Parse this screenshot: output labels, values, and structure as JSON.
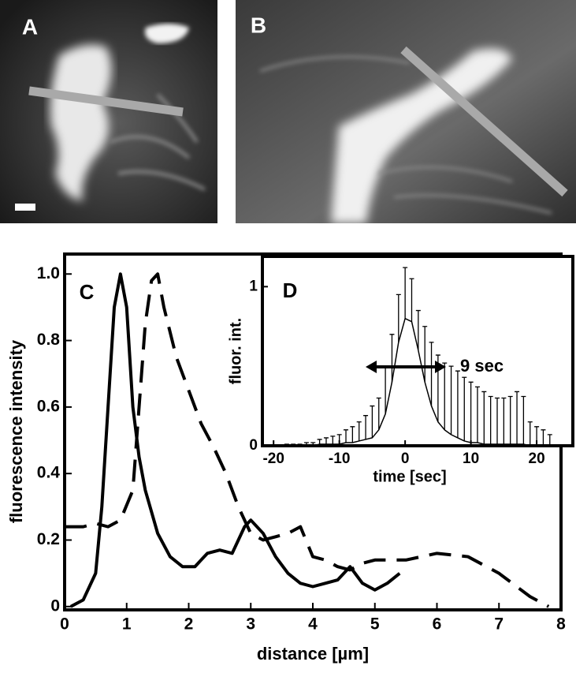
{
  "panels": [
    {
      "label": "A"
    },
    {
      "label": "B"
    }
  ],
  "chart_data": [
    {
      "type": "line",
      "panel": "C",
      "xlabel": "distance [µm]",
      "ylabel": "fluorescence intensity",
      "xlim": [
        0,
        8
      ],
      "xticks": [
        0,
        1,
        2,
        3,
        4,
        5,
        6,
        7,
        8
      ],
      "ylim": [
        -0.01,
        1.06
      ],
      "yticks": [
        0,
        0.2,
        0.4,
        0.6,
        0.8,
        {
          "value": 1,
          "label": "1.0"
        }
      ],
      "series": [
        {
          "color": "#000000",
          "style": "solid",
          "x": [
            0.1,
            0.3,
            0.5,
            0.6,
            0.7,
            0.8,
            0.9,
            1.0,
            1.1,
            1.2,
            1.3,
            1.5,
            1.7,
            1.9,
            2.1,
            2.3,
            2.5,
            2.7,
            2.9,
            3.0,
            3.2,
            3.4,
            3.6,
            3.8,
            4.0,
            4.2,
            4.4,
            4.6,
            4.8,
            5.0,
            5.2,
            5.4
          ],
          "values": [
            0,
            0.02,
            0.1,
            0.3,
            0.6,
            0.9,
            1.0,
            0.9,
            0.6,
            0.45,
            0.35,
            0.22,
            0.15,
            0.12,
            0.12,
            0.16,
            0.17,
            0.16,
            0.24,
            0.26,
            0.22,
            0.15,
            0.1,
            0.07,
            0.06,
            0.07,
            0.08,
            0.12,
            0.07,
            0.05,
            0.07,
            0.1
          ]
        },
        {
          "color": "#000000",
          "style": "dashed",
          "x": [
            0,
            0.3,
            0.5,
            0.7,
            0.9,
            1.1,
            1.2,
            1.3,
            1.4,
            1.5,
            1.6,
            1.8,
            2.0,
            2.2,
            2.4,
            2.6,
            2.8,
            3.0,
            3.2,
            3.4,
            3.6,
            3.8,
            4.0,
            4.2,
            4.4,
            4.6,
            4.8,
            5.0,
            5.5,
            6.0,
            6.5,
            7.0,
            7.5,
            7.8
          ],
          "values": [
            0.24,
            0.24,
            0.25,
            0.24,
            0.26,
            0.35,
            0.6,
            0.85,
            0.98,
            1.0,
            0.9,
            0.75,
            0.65,
            0.55,
            0.48,
            0.4,
            0.3,
            0.22,
            0.2,
            0.21,
            0.22,
            0.24,
            0.15,
            0.14,
            0.12,
            0.11,
            0.13,
            0.14,
            0.14,
            0.16,
            0.15,
            0.1,
            0.03,
            0
          ]
        }
      ]
    },
    {
      "type": "errorline",
      "panel": "D",
      "xlabel": "time [sec]",
      "ylabel": "fluor. int.",
      "annotation": "9 sec",
      "xlim": [
        -21.7,
        25.5
      ],
      "xticks": [
        -20,
        -10,
        0,
        10,
        20
      ],
      "ylim": [
        0,
        1.19
      ],
      "yticks": [
        0,
        1
      ],
      "series": [
        {
          "color": "#000000",
          "style": "solid",
          "x": [
            -20,
            -19,
            -18,
            -17,
            -16,
            -15,
            -14,
            -13,
            -12,
            -11,
            -10,
            -9,
            -8,
            -7,
            -6,
            -5,
            -4,
            -3,
            -2,
            -1,
            0,
            1,
            2,
            3,
            4,
            5,
            6,
            7,
            8,
            9,
            10,
            11,
            12,
            13,
            14,
            15,
            16,
            17,
            18,
            19,
            20,
            21,
            22
          ],
          "values": [
            0,
            0,
            0,
            0,
            0,
            0,
            0,
            0.01,
            0.01,
            0.01,
            0.01,
            0.02,
            0.02,
            0.03,
            0.04,
            0.05,
            0.1,
            0.2,
            0.4,
            0.65,
            0.8,
            0.78,
            0.6,
            0.4,
            0.25,
            0.15,
            0.1,
            0.07,
            0.05,
            0.03,
            0.02,
            0.02,
            0.01,
            0.01,
            0.01,
            0.01,
            0.01,
            0.01,
            0.01,
            0,
            0,
            0,
            0
          ],
          "errors": [
            0,
            0,
            0.01,
            0.01,
            0.01,
            0.02,
            0.02,
            0.03,
            0.04,
            0.05,
            0.06,
            0.08,
            0.1,
            0.12,
            0.15,
            0.2,
            0.2,
            0.3,
            0.3,
            0.3,
            0.32,
            0.27,
            0.25,
            0.35,
            0.4,
            0.42,
            0.42,
            0.43,
            0.42,
            0.4,
            0.38,
            0.35,
            0.33,
            0.3,
            0.29,
            0.29,
            0.3,
            0.33,
            0.3,
            0.15,
            0.12,
            0.1,
            0.07
          ]
        }
      ]
    }
  ]
}
